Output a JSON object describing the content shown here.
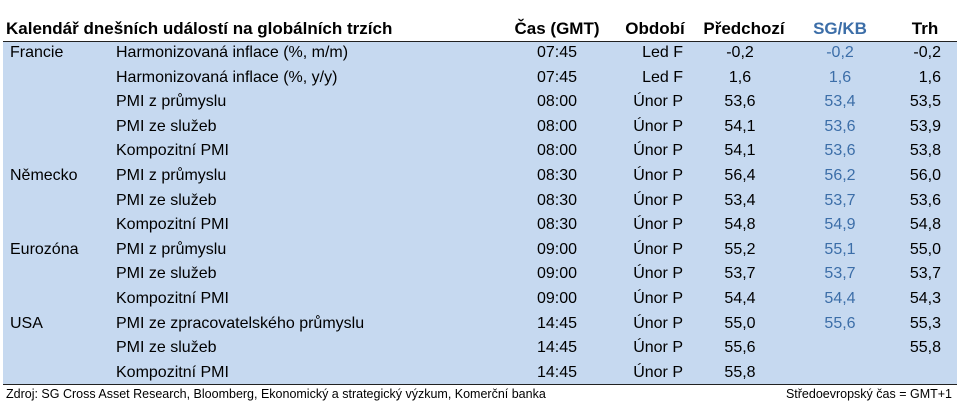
{
  "header": {
    "title": "Kalendář dnešních událostí na globálních trzích",
    "columns": [
      "Čas (GMT)",
      "Období",
      "Předchozí",
      "SG/KB",
      "Trh"
    ]
  },
  "table": {
    "rows": [
      [
        "Francie",
        "Harmonizovaná inflace (%, m/m)",
        "07:45",
        "Led F",
        "-0,2",
        "-0,2",
        "-0,2"
      ],
      [
        null,
        "Harmonizovaná inflace (%, y/y)",
        "07:45",
        "Led F",
        "1,6",
        "1,6",
        "1,6"
      ],
      [
        null,
        "PMI z průmyslu",
        "08:00",
        "Únor P",
        "53,6",
        "53,4",
        "53,5"
      ],
      [
        null,
        "PMI ze služeb",
        "08:00",
        "Únor P",
        "54,1",
        "53,6",
        "53,9"
      ],
      [
        null,
        "Kompozitní PMI",
        "08:00",
        "Únor P",
        "54,1",
        "53,6",
        "53,8"
      ],
      [
        "Německo",
        "PMI z průmyslu",
        "08:30",
        "Únor P",
        "56,4",
        "56,2",
        "56,0"
      ],
      [
        null,
        "PMI ze služeb",
        "08:30",
        "Únor P",
        "53,4",
        "53,7",
        "53,6"
      ],
      [
        null,
        "Kompozitní PMI",
        "08:30",
        "Únor P",
        "54,8",
        "54,9",
        "54,8"
      ],
      [
        "Eurozóna",
        "PMI z průmyslu",
        "09:00",
        "Únor P",
        "55,2",
        "55,1",
        "55,0"
      ],
      [
        null,
        "PMI ze služeb",
        "09:00",
        "Únor P",
        "53,7",
        "53,7",
        "53,7"
      ],
      [
        null,
        "Kompozitní PMI",
        "09:00",
        "Únor P",
        "54,4",
        "54,4",
        "54,3"
      ],
      [
        "USA",
        "PMI ze zpracovatelského průmyslu",
        "14:45",
        "Únor P",
        "55,0",
        "55,6",
        "55,3"
      ],
      [
        null,
        "PMI ze služeb",
        "14:45",
        "Únor P",
        "55,6",
        null,
        "55,8"
      ],
      [
        null,
        "Kompozitní PMI",
        "14:45",
        "Únor P",
        "55,8",
        null,
        null
      ]
    ]
  },
  "footer": {
    "source": "Zdroj: SG Cross Asset Research, Bloomberg, Ekonomický a strategický výzkum, Komerční banka",
    "note": "Středoevropský čas = GMT+1"
  }
}
